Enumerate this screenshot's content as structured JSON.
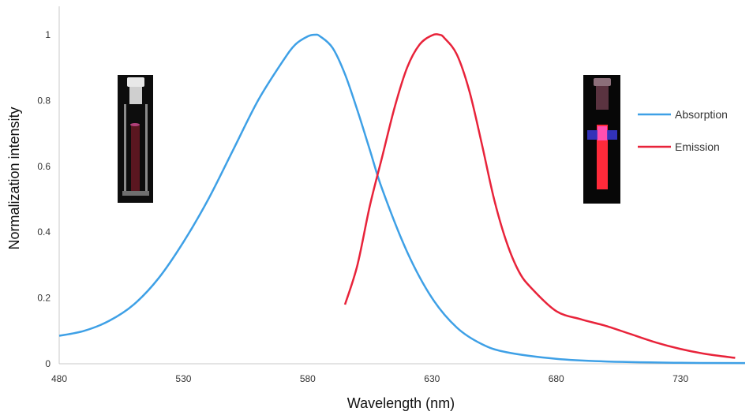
{
  "chart_data": {
    "type": "line",
    "xlabel": "Wavelength (nm)",
    "ylabel": "Normalization intensity",
    "xlim": [
      480,
      756
    ],
    "ylim": [
      0,
      1.0
    ],
    "x_ticks": [
      "480",
      "530",
      "580",
      "630",
      "680",
      "730"
    ],
    "y_ticks": [
      "0",
      "0.2",
      "0.4",
      "0.6",
      "0.8",
      "1"
    ],
    "grid": false,
    "legend_position": "right",
    "series": [
      {
        "name": "Absorption",
        "color": "#3ea0e6",
        "x": [
          480,
          490,
          500,
          510,
          520,
          530,
          540,
          550,
          560,
          570,
          575,
          580,
          583,
          585,
          590,
          595,
          600,
          605,
          610,
          620,
          630,
          640,
          650,
          660,
          680,
          700,
          730,
          756
        ],
        "y": [
          0.085,
          0.1,
          0.13,
          0.18,
          0.26,
          0.37,
          0.5,
          0.65,
          0.8,
          0.92,
          0.97,
          0.995,
          1.0,
          0.995,
          0.96,
          0.88,
          0.77,
          0.65,
          0.53,
          0.34,
          0.2,
          0.11,
          0.06,
          0.035,
          0.015,
          0.007,
          0.003,
          0.002
        ]
      },
      {
        "name": "Emission",
        "color": "#e8233a",
        "x": [
          595,
          600,
          605,
          610,
          615,
          620,
          625,
          630,
          633,
          635,
          640,
          645,
          650,
          655,
          660,
          665,
          670,
          680,
          690,
          700,
          710,
          720,
          730,
          740,
          752
        ],
        "y": [
          0.18,
          0.3,
          0.48,
          0.63,
          0.78,
          0.9,
          0.97,
          0.998,
          1.0,
          0.99,
          0.94,
          0.83,
          0.67,
          0.5,
          0.37,
          0.28,
          0.23,
          0.16,
          0.135,
          0.115,
          0.09,
          0.065,
          0.045,
          0.03,
          0.018
        ]
      }
    ]
  },
  "images": {
    "left_vial": "cuvette-photo",
    "right_vial": "fluorescence-cuvette-photo"
  }
}
